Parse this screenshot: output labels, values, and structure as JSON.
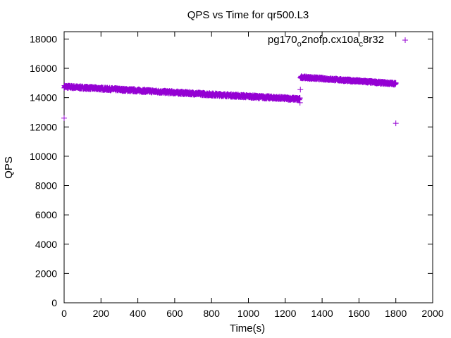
{
  "chart_data": {
    "type": "scatter",
    "title": "QPS vs Time for qr500.L3",
    "xlabel": "Time(s)",
    "ylabel": "QPS",
    "xlim": [
      0,
      2000
    ],
    "ylim": [
      0,
      18500
    ],
    "xticks": [
      0,
      200,
      400,
      600,
      800,
      1000,
      1200,
      1400,
      1600,
      1800,
      2000
    ],
    "yticks": [
      0,
      2000,
      4000,
      6000,
      8000,
      10000,
      12000,
      14000,
      16000,
      18000
    ],
    "grid": false,
    "legend_position": "top-right",
    "series": [
      {
        "name_parts": [
          "pg170",
          "o",
          "2nofp.cx10a",
          "c",
          "8r32"
        ],
        "marker": "+",
        "color": "#9400d3",
        "segments": [
          {
            "x_start": 1,
            "x_end": 1280,
            "y_start": 14750,
            "y_end": 13900,
            "spread": 180
          },
          {
            "x_start": 1282,
            "x_end": 1800,
            "y_start": 15400,
            "y_end": 14950,
            "spread": 150
          }
        ],
        "points": [
          {
            "x": 0,
            "y": 12600
          },
          {
            "x": 1280,
            "y": 13650
          },
          {
            "x": 1282,
            "y": 14550
          },
          {
            "x": 1800,
            "y": 12250
          }
        ]
      }
    ]
  }
}
